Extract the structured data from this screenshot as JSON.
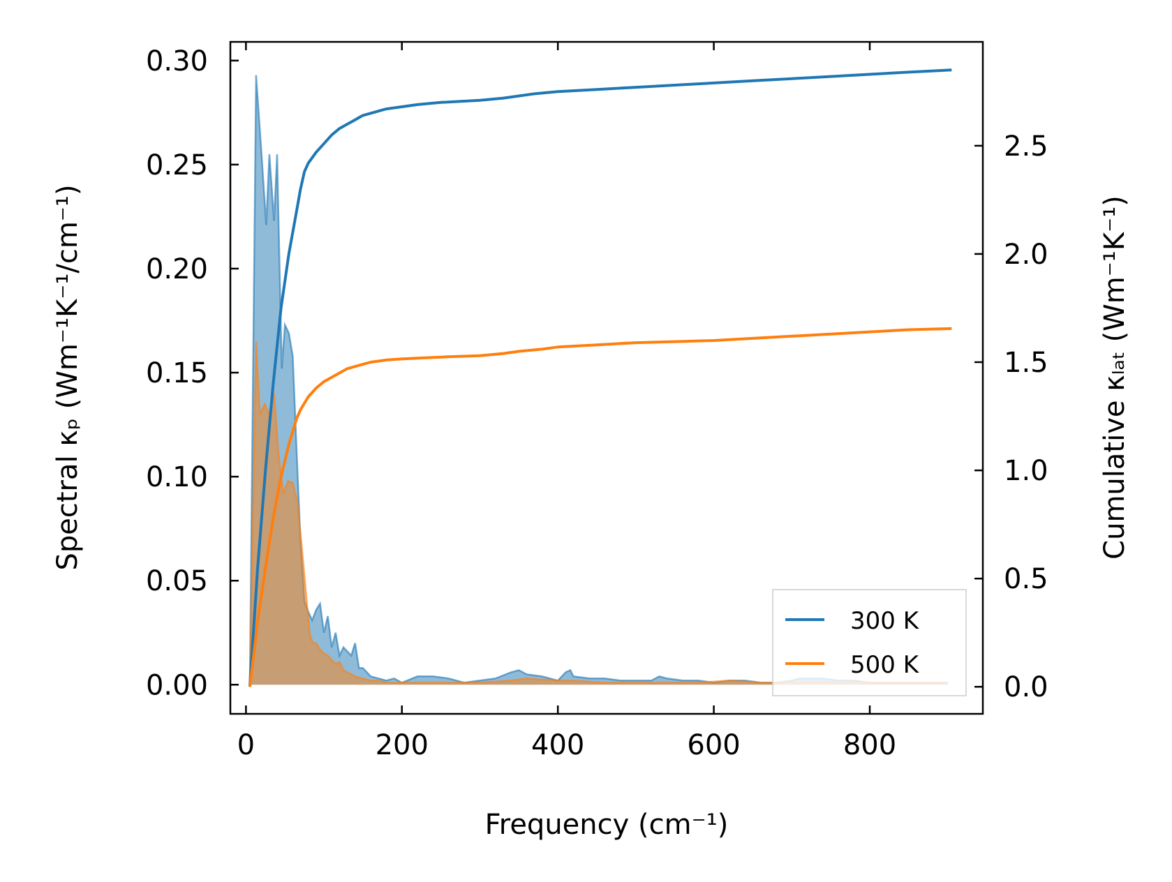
{
  "chart_data": {
    "type": "line",
    "xlabel": "Frequency (cm⁻¹)",
    "ylabel_left": "Spectral κₚ (Wm⁻¹K⁻¹/cm⁻¹)",
    "ylabel_right": "Cumulative κₗₐₜ (Wm⁻¹K⁻¹)",
    "xlim": [
      -20,
      945
    ],
    "ylim_left": [
      -0.014,
      0.309
    ],
    "ylim_right": [
      -0.125,
      2.98
    ],
    "xticks": [
      0,
      200,
      400,
      600,
      800
    ],
    "xtick_labels": [
      "0",
      "200",
      "400",
      "600",
      "800"
    ],
    "yticks_left": [
      0.0,
      0.05,
      0.1,
      0.15,
      0.2,
      0.25,
      0.3
    ],
    "ytick_labels_left": [
      "0.00",
      "0.05",
      "0.10",
      "0.15",
      "0.20",
      "0.25",
      "0.30"
    ],
    "yticks_right": [
      0.0,
      0.5,
      1.0,
      1.5,
      2.0,
      2.5
    ],
    "ytick_labels_right": [
      "0.0",
      "0.5",
      "1.0",
      "1.5",
      "2.0",
      "2.5"
    ],
    "legend_position": "lower-right",
    "series": [
      {
        "name": "300 K",
        "color": "#1f77b4",
        "spectral_x": [
          5,
          13,
          20,
          26,
          30,
          36,
          40,
          46,
          50,
          55,
          60,
          65,
          70,
          75,
          80,
          85,
          90,
          95,
          100,
          105,
          110,
          115,
          120,
          125,
          130,
          135,
          140,
          145,
          150,
          160,
          170,
          180,
          190,
          200,
          220,
          240,
          260,
          280,
          300,
          320,
          340,
          350,
          360,
          380,
          400,
          410,
          416,
          420,
          440,
          460,
          480,
          500,
          520,
          530,
          540,
          560,
          580,
          600,
          620,
          640,
          660,
          680,
          700,
          710,
          720,
          740,
          760,
          780,
          800,
          820,
          840,
          860,
          880,
          900
        ],
        "spectral_y": [
          0.0,
          0.293,
          0.255,
          0.221,
          0.255,
          0.223,
          0.255,
          0.152,
          0.173,
          0.169,
          0.158,
          0.112,
          0.069,
          0.04,
          0.035,
          0.031,
          0.036,
          0.039,
          0.025,
          0.033,
          0.018,
          0.025,
          0.014,
          0.018,
          0.016,
          0.014,
          0.02,
          0.008,
          0.008,
          0.004,
          0.003,
          0.002,
          0.003,
          0.001,
          0.004,
          0.004,
          0.003,
          0.001,
          0.002,
          0.003,
          0.006,
          0.007,
          0.005,
          0.004,
          0.002,
          0.006,
          0.007,
          0.004,
          0.003,
          0.003,
          0.002,
          0.002,
          0.002,
          0.004,
          0.003,
          0.002,
          0.002,
          0.001,
          0.002,
          0.002,
          0.001,
          0.001,
          0.002,
          0.003,
          0.003,
          0.003,
          0.002,
          0.002,
          0.001,
          0.001,
          0.001,
          0.001,
          0.001,
          0.001
        ],
        "cumulative_x": [
          5,
          15,
          25,
          35,
          45,
          55,
          65,
          70,
          75,
          80,
          90,
          100,
          110,
          120,
          130,
          140,
          150,
          160,
          170,
          180,
          200,
          220,
          250,
          300,
          330,
          350,
          370,
          400,
          450,
          500,
          550,
          600,
          650,
          700,
          750,
          800,
          850,
          905
        ],
        "cumulative_y": [
          0.0,
          0.55,
          1.0,
          1.4,
          1.75,
          2.0,
          2.2,
          2.3,
          2.38,
          2.42,
          2.47,
          2.51,
          2.55,
          2.58,
          2.6,
          2.62,
          2.64,
          2.65,
          2.66,
          2.67,
          2.68,
          2.69,
          2.7,
          2.71,
          2.72,
          2.73,
          2.74,
          2.75,
          2.76,
          2.77,
          2.78,
          2.79,
          2.8,
          2.81,
          2.82,
          2.83,
          2.84,
          2.85
        ]
      },
      {
        "name": "500 K",
        "color": "#ff7f0e",
        "spectral_x": [
          5,
          13,
          18,
          24,
          30,
          36,
          42,
          48,
          54,
          60,
          66,
          72,
          78,
          82,
          86,
          90,
          95,
          100,
          105,
          110,
          115,
          120,
          125,
          130,
          135,
          140,
          150,
          160,
          170,
          180,
          190,
          200,
          230,
          260,
          300,
          340,
          360,
          400,
          420,
          460,
          500,
          540,
          580,
          620,
          660,
          700,
          740,
          780,
          820,
          860,
          900
        ],
        "spectral_y": [
          0.0,
          0.165,
          0.13,
          0.135,
          0.13,
          0.14,
          0.11,
          0.092,
          0.098,
          0.097,
          0.088,
          0.065,
          0.04,
          0.024,
          0.02,
          0.02,
          0.017,
          0.015,
          0.014,
          0.012,
          0.01,
          0.011,
          0.007,
          0.006,
          0.005,
          0.004,
          0.003,
          0.002,
          0.002,
          0.001,
          0.001,
          0.001,
          0.001,
          0.001,
          0.001,
          0.002,
          0.003,
          0.002,
          0.002,
          0.001,
          0.001,
          0.001,
          0.001,
          0.002,
          0.001,
          0.001,
          0.001,
          0.001,
          0.001,
          0.001,
          0.001
        ],
        "cumulative_x": [
          5,
          15,
          25,
          35,
          45,
          55,
          65,
          70,
          75,
          80,
          90,
          100,
          110,
          120,
          130,
          140,
          150,
          160,
          170,
          180,
          200,
          230,
          260,
          300,
          330,
          350,
          380,
          400,
          450,
          500,
          550,
          600,
          650,
          700,
          750,
          800,
          850,
          905
        ],
        "cumulative_y": [
          0.0,
          0.3,
          0.55,
          0.78,
          0.97,
          1.12,
          1.24,
          1.28,
          1.31,
          1.34,
          1.38,
          1.41,
          1.43,
          1.45,
          1.47,
          1.48,
          1.49,
          1.5,
          1.505,
          1.51,
          1.515,
          1.52,
          1.525,
          1.53,
          1.54,
          1.55,
          1.56,
          1.57,
          1.58,
          1.59,
          1.595,
          1.6,
          1.61,
          1.62,
          1.63,
          1.64,
          1.65,
          1.655
        ]
      }
    ]
  }
}
